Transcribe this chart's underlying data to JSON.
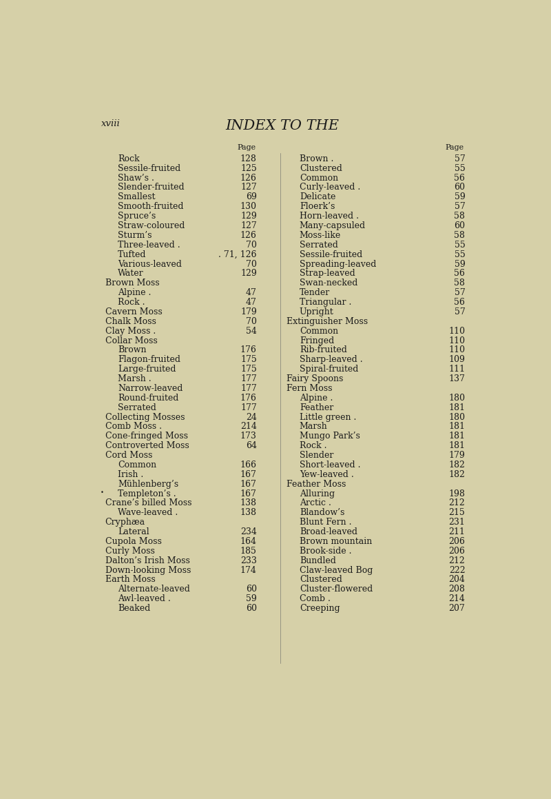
{
  "background_color": "#d6d0a8",
  "text_color": "#1a1a1a",
  "title": "INDEX TO THE",
  "header_left": "xviii",
  "page_width": 8.0,
  "page_height": 11.59,
  "left_column": [
    {
      "text": "Rock",
      "dots": true,
      "page": "128",
      "indent": 1,
      "style": "normal"
    },
    {
      "text": "Sessile-fruited",
      "dots": true,
      "page": "125",
      "indent": 1,
      "style": "normal"
    },
    {
      "text": "Shaw’s .",
      "dots": true,
      "page": "126",
      "indent": 1,
      "style": "normal"
    },
    {
      "text": "Slender-fruited",
      "dots": true,
      "page": "127",
      "indent": 1,
      "style": "normal"
    },
    {
      "text": "Smallest",
      "dots": true,
      "page": "69",
      "indent": 1,
      "style": "normal"
    },
    {
      "text": "Smooth-fruited",
      "dots": true,
      "page": "130",
      "indent": 1,
      "style": "normal"
    },
    {
      "text": "Spruce’s",
      "dots": true,
      "page": "129",
      "indent": 1,
      "style": "normal"
    },
    {
      "text": "Straw-coloured",
      "dots": true,
      "page": "127",
      "indent": 1,
      "style": "normal"
    },
    {
      "text": "Sturm’s",
      "dots": true,
      "page": "126",
      "indent": 1,
      "style": "normal"
    },
    {
      "text": "Three-leaved .",
      "dots": true,
      "page": "70",
      "indent": 1,
      "style": "normal"
    },
    {
      "text": "Tufted",
      "dots": true,
      "page": ". 71, 126",
      "indent": 1,
      "style": "normal"
    },
    {
      "text": "Various-leaved",
      "dots": true,
      "page": "70",
      "indent": 1,
      "style": "normal"
    },
    {
      "text": "Water",
      "dots": true,
      "page": "129",
      "indent": 1,
      "style": "normal"
    },
    {
      "text": "Brown Moss",
      "dots": false,
      "page": "",
      "indent": 0,
      "style": "smallcaps"
    },
    {
      "text": "Alpine .",
      "dots": true,
      "page": "47",
      "indent": 1,
      "style": "normal"
    },
    {
      "text": "Rock .",
      "dots": true,
      "page": "47",
      "indent": 1,
      "style": "normal"
    },
    {
      "text": "Cavern Moss",
      "dots": true,
      "page": "179",
      "indent": 0,
      "style": "smallcaps"
    },
    {
      "text": "Chalk Moss",
      "dots": true,
      "page": "70",
      "indent": 0,
      "style": "smallcaps"
    },
    {
      "text": "Clay Moss .",
      "dots": true,
      "page": "54",
      "indent": 0,
      "style": "smallcaps"
    },
    {
      "text": "Collar Moss",
      "dots": false,
      "page": "",
      "indent": 0,
      "style": "smallcaps"
    },
    {
      "text": "Brown",
      "dots": true,
      "page": "176",
      "indent": 1,
      "style": "normal"
    },
    {
      "text": "Flagon-fruited",
      "dots": true,
      "page": "175",
      "indent": 1,
      "style": "normal"
    },
    {
      "text": "Large-fruited",
      "dots": true,
      "page": "175",
      "indent": 1,
      "style": "normal"
    },
    {
      "text": "Marsh .",
      "dots": true,
      "page": "177",
      "indent": 1,
      "style": "normal"
    },
    {
      "text": "Narrow-leaved",
      "dots": true,
      "page": "177",
      "indent": 1,
      "style": "normal"
    },
    {
      "text": "Round-fruited",
      "dots": true,
      "page": "176",
      "indent": 1,
      "style": "normal"
    },
    {
      "text": "Serrated",
      "dots": true,
      "page": "177",
      "indent": 1,
      "style": "normal"
    },
    {
      "text": "Collecting Mosses",
      "dots": true,
      "page": "24",
      "indent": 0,
      "style": "smallcaps"
    },
    {
      "text": "Comb Moss .",
      "dots": true,
      "page": "214",
      "indent": 0,
      "style": "smallcaps"
    },
    {
      "text": "Cone-fringed Moss",
      "dots": true,
      "page": "173",
      "indent": 0,
      "style": "smallcaps"
    },
    {
      "text": "Controverted Moss",
      "dots": true,
      "page": "64",
      "indent": 0,
      "style": "smallcaps"
    },
    {
      "text": "Cord Moss",
      "dots": false,
      "page": "",
      "indent": 0,
      "style": "smallcaps"
    },
    {
      "text": "Common",
      "dots": true,
      "page": "166",
      "indent": 1,
      "style": "normal"
    },
    {
      "text": "Irish .",
      "dots": true,
      "page": "167",
      "indent": 1,
      "style": "normal"
    },
    {
      "text": "Mühlenberg’s",
      "dots": true,
      "page": "167",
      "indent": 1,
      "style": "normal"
    },
    {
      "text": "Templeton’s .",
      "dots": true,
      "page": "167",
      "indent": 1,
      "style": "normal",
      "bullet": true
    },
    {
      "text": "Crane’s billed Moss",
      "dots": true,
      "page": "138",
      "indent": 0,
      "style": "smallcaps"
    },
    {
      "text": "Wave-leaved .",
      "dots": true,
      "page": "138",
      "indent": 1,
      "style": "normal"
    },
    {
      "text": "Cryphæa",
      "dots": false,
      "page": "",
      "indent": 0,
      "style": "smallcaps"
    },
    {
      "text": "Lateral",
      "dots": true,
      "page": "234",
      "indent": 1,
      "style": "normal"
    },
    {
      "text": "Cupola Moss",
      "dots": true,
      "page": "164",
      "indent": 0,
      "style": "smallcaps"
    },
    {
      "text": "Curly Moss",
      "dots": true,
      "page": "185",
      "indent": 0,
      "style": "smallcaps"
    },
    {
      "text": "Dalton’s Irish Moss",
      "dots": true,
      "page": "233",
      "indent": 0,
      "style": "smallcaps"
    },
    {
      "text": "Down-looking Moss",
      "dots": true,
      "page": "174",
      "indent": 0,
      "style": "smallcaps"
    },
    {
      "text": "Earth Moss",
      "dots": false,
      "page": "",
      "indent": 0,
      "style": "smallcaps"
    },
    {
      "text": "Alternate-leaved",
      "dots": true,
      "page": "60",
      "indent": 1,
      "style": "normal"
    },
    {
      "text": "Awl-leaved .",
      "dots": true,
      "page": "59",
      "indent": 1,
      "style": "normal"
    },
    {
      "text": "Beaked",
      "dots": true,
      "page": "60",
      "indent": 1,
      "style": "normal"
    }
  ],
  "right_column": [
    {
      "text": "Brown .",
      "dots": true,
      "page": "57",
      "indent": 1,
      "style": "normal"
    },
    {
      "text": "Clustered",
      "dots": true,
      "page": "55",
      "indent": 1,
      "style": "normal"
    },
    {
      "text": "Common",
      "dots": true,
      "page": "56",
      "indent": 1,
      "style": "normal"
    },
    {
      "text": "Curly-leaved .",
      "dots": true,
      "page": "60",
      "indent": 1,
      "style": "normal"
    },
    {
      "text": "Delicate",
      "dots": true,
      "page": "59",
      "indent": 1,
      "style": "normal"
    },
    {
      "text": "Floerk’s",
      "dots": true,
      "page": "57",
      "indent": 1,
      "style": "normal"
    },
    {
      "text": "Horn-leaved .",
      "dots": true,
      "page": "58",
      "indent": 1,
      "style": "normal"
    },
    {
      "text": "Many-capsuled",
      "dots": true,
      "page": "60",
      "indent": 1,
      "style": "normal"
    },
    {
      "text": "Moss-like",
      "dots": true,
      "page": "58",
      "indent": 1,
      "style": "normal"
    },
    {
      "text": "Serrated",
      "dots": true,
      "page": "55",
      "indent": 1,
      "style": "normal"
    },
    {
      "text": "Sessile-fruited",
      "dots": true,
      "page": "55",
      "indent": 1,
      "style": "normal"
    },
    {
      "text": "Spreading-leaved",
      "dots": true,
      "page": "59",
      "indent": 1,
      "style": "normal"
    },
    {
      "text": "Strap-leaved",
      "dots": true,
      "page": "56",
      "indent": 1,
      "style": "normal"
    },
    {
      "text": "Swan-necked",
      "dots": true,
      "page": "58",
      "indent": 1,
      "style": "normal"
    },
    {
      "text": "Tender",
      "dots": true,
      "page": "57",
      "indent": 1,
      "style": "normal"
    },
    {
      "text": "Triangular .",
      "dots": true,
      "page": "56",
      "indent": 1,
      "style": "normal"
    },
    {
      "text": "Upright",
      "dots": true,
      "page": "57",
      "indent": 1,
      "style": "normal"
    },
    {
      "text": "Extinguisher Moss",
      "dots": false,
      "page": "",
      "indent": 0,
      "style": "smallcaps"
    },
    {
      "text": "Common",
      "dots": true,
      "page": "110",
      "indent": 1,
      "style": "normal"
    },
    {
      "text": "Fringed",
      "dots": true,
      "page": "110",
      "indent": 1,
      "style": "normal"
    },
    {
      "text": "Rib-fruited",
      "dots": true,
      "page": "110",
      "indent": 1,
      "style": "normal"
    },
    {
      "text": "Sharp-leaved .",
      "dots": true,
      "page": "109",
      "indent": 1,
      "style": "normal"
    },
    {
      "text": "Spiral-fruited",
      "dots": true,
      "page": "111",
      "indent": 1,
      "style": "normal"
    },
    {
      "text": "Fairy Spoons",
      "dots": true,
      "page": "137",
      "indent": 0,
      "style": "smallcaps"
    },
    {
      "text": "Fern Moss",
      "dots": false,
      "page": "",
      "indent": 0,
      "style": "smallcaps"
    },
    {
      "text": "Alpine .",
      "dots": true,
      "page": "180",
      "indent": 1,
      "style": "normal"
    },
    {
      "text": "Feather",
      "dots": true,
      "page": "181",
      "indent": 1,
      "style": "normal"
    },
    {
      "text": "Little green .",
      "dots": true,
      "page": "180",
      "indent": 1,
      "style": "normal"
    },
    {
      "text": "Marsh",
      "dots": true,
      "page": "181",
      "indent": 1,
      "style": "normal"
    },
    {
      "text": "Mungo Park’s",
      "dots": true,
      "page": "181",
      "indent": 1,
      "style": "normal"
    },
    {
      "text": "Rock .",
      "dots": true,
      "page": "181",
      "indent": 1,
      "style": "normal"
    },
    {
      "text": "Slender",
      "dots": true,
      "page": "179",
      "indent": 1,
      "style": "normal"
    },
    {
      "text": "Short-leaved .",
      "dots": true,
      "page": "182",
      "indent": 1,
      "style": "normal"
    },
    {
      "text": "Yew-leaved .",
      "dots": true,
      "page": "182",
      "indent": 1,
      "style": "normal"
    },
    {
      "text": "Feather Moss",
      "dots": false,
      "page": "",
      "indent": 0,
      "style": "smallcaps"
    },
    {
      "text": "Alluring",
      "dots": true,
      "page": "198",
      "indent": 1,
      "style": "normal"
    },
    {
      "text": "Arctic .",
      "dots": true,
      "page": "212",
      "indent": 1,
      "style": "normal"
    },
    {
      "text": "Blandow’s",
      "dots": true,
      "page": "215",
      "indent": 1,
      "style": "normal"
    },
    {
      "text": "Blunt Fern .",
      "dots": true,
      "page": "231",
      "indent": 1,
      "style": "normal"
    },
    {
      "text": "Broad-leaved",
      "dots": true,
      "page": "211",
      "indent": 1,
      "style": "normal"
    },
    {
      "text": "Brown mountain",
      "dots": true,
      "page": "206",
      "indent": 1,
      "style": "normal"
    },
    {
      "text": "Brook-side .",
      "dots": true,
      "page": "206",
      "indent": 1,
      "style": "normal"
    },
    {
      "text": "Bundled",
      "dots": true,
      "page": "212",
      "indent": 1,
      "style": "normal"
    },
    {
      "text": "Claw-leaved Bog",
      "dots": true,
      "page": "222",
      "indent": 1,
      "style": "normal"
    },
    {
      "text": "Clustered",
      "dots": true,
      "page": "204",
      "indent": 1,
      "style": "normal"
    },
    {
      "text": "Cluster-flowered",
      "dots": true,
      "page": "208",
      "indent": 1,
      "style": "normal"
    },
    {
      "text": "Comb .",
      "dots": true,
      "page": "214",
      "indent": 1,
      "style": "normal"
    },
    {
      "text": "Creeping",
      "dots": true,
      "page": "207",
      "indent": 1,
      "style": "normal"
    }
  ]
}
